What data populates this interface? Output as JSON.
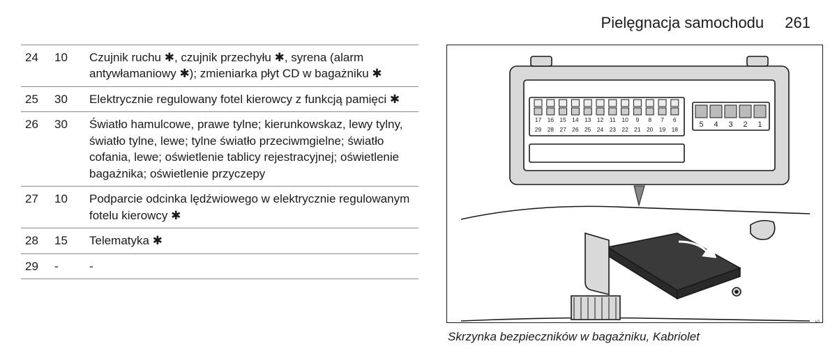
{
  "header": {
    "title": "Pielęgnacja samochodu",
    "page": "261"
  },
  "table": {
    "rows": [
      {
        "no": "24",
        "amp": "10",
        "desc": "Czujnik ruchu ✱, czujnik przechyłu ✱, syrena (alarm antywłamaniowy ✱); zmieniarka płyt CD w bagażniku ✱"
      },
      {
        "no": "25",
        "amp": "30",
        "desc": "Elektrycznie regulowany fotel kierowcy z funkcją pamięci ✱"
      },
      {
        "no": "26",
        "amp": "30",
        "desc": "Światło hamulcowe, prawe tylne; kierunkowskaz, lewy tylny, światło tylne, lewe; tylne światło przeciwmgielne; światło cofania, lewe; oświetlenie tablicy rejestracyjnej; oświetlenie bagażnika; oświetlenie przyczepy"
      },
      {
        "no": "27",
        "amp": "10",
        "desc": "Podparcie odcinka lędźwiowego w elektrycznie regulowanym fotelu kierowcy ✱"
      },
      {
        "no": "28",
        "amp": "15",
        "desc": "Telematyka ✱"
      },
      {
        "no": "29",
        "amp": "-",
        "desc": "-"
      }
    ]
  },
  "diagram": {
    "top_row_labels": [
      "17",
      "16",
      "15",
      "14",
      "13",
      "12",
      "11",
      "10",
      "9",
      "8",
      "7",
      "6"
    ],
    "bottom_row_labels": [
      "29",
      "28",
      "27",
      "26",
      "25",
      "24",
      "23",
      "22",
      "21",
      "20",
      "19",
      "18"
    ],
    "right_block_labels": [
      "5",
      "4",
      "3",
      "2",
      "1"
    ],
    "caption": "Skrzynka bezpieczników w bagażniku, Kabriolet",
    "image_code": "IB3035",
    "colors": {
      "fusebox_fill": "#d9d9d9",
      "cover_fill": "#3a3a3a",
      "line": "#1a1a1a"
    }
  }
}
